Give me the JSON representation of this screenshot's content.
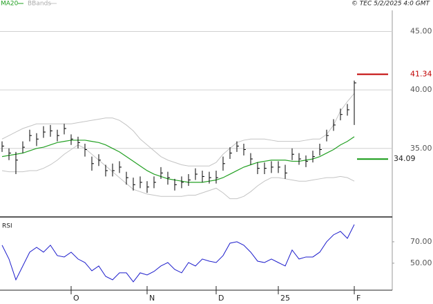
{
  "chart_data": {
    "type": "ohlc",
    "credit": "© TEC 5/2/2025 4:0 GMT",
    "color": "#000000",
    "categories": [
      null,
      null,
      null,
      null,
      null,
      null,
      null,
      null,
      null,
      null,
      "O",
      null,
      null,
      null,
      null,
      null,
      null,
      null,
      null,
      null,
      null,
      "N",
      null,
      null,
      null,
      null,
      null,
      null,
      null,
      null,
      null,
      "D",
      null,
      null,
      null,
      null,
      null,
      null,
      null,
      null,
      "25",
      null,
      null,
      null,
      null,
      null,
      null,
      null,
      null,
      null,
      null,
      "F"
    ],
    "high": [
      35.6,
      35.0,
      34.7,
      35.6,
      36.6,
      36.3,
      36.9,
      37.0,
      36.6,
      37.1,
      36.2,
      36.0,
      35.4,
      34.3,
      34.5,
      33.6,
      33.7,
      33.9,
      33.0,
      32.5,
      32.6,
      32.2,
      32.6,
      33.4,
      33.0,
      32.4,
      32.6,
      32.8,
      33.3,
      33.1,
      33.0,
      33.1,
      34.3,
      35.1,
      35.6,
      35.4,
      34.6,
      33.8,
      33.8,
      33.9,
      33.9,
      33.6,
      35.0,
      34.6,
      34.4,
      34.8,
      35.4,
      36.6,
      37.5,
      38.4,
      38.8,
      40.8
    ],
    "low": [
      34.7,
      34.0,
      32.8,
      34.6,
      35.6,
      35.2,
      35.9,
      36.0,
      35.6,
      36.2,
      35.3,
      35.0,
      34.3,
      33.1,
      33.5,
      32.6,
      32.6,
      32.9,
      31.9,
      31.4,
      31.6,
      31.2,
      31.6,
      32.4,
      31.9,
      31.4,
      31.6,
      31.8,
      32.3,
      32.1,
      32.0,
      32.0,
      33.1,
      34.1,
      34.7,
      34.4,
      33.6,
      32.8,
      32.8,
      32.9,
      32.9,
      32.4,
      34.0,
      33.6,
      33.4,
      33.8,
      34.4,
      35.6,
      36.5,
      37.4,
      37.8,
      37.0
    ],
    "close": [
      35.2,
      34.6,
      34.0,
      35.1,
      36.1,
      35.8,
      36.4,
      36.5,
      36.1,
      36.7,
      35.8,
      35.5,
      34.9,
      33.7,
      34.0,
      33.1,
      33.1,
      33.4,
      32.5,
      31.9,
      32.1,
      31.7,
      32.1,
      32.9,
      32.5,
      31.9,
      32.1,
      32.3,
      32.8,
      32.6,
      32.5,
      32.5,
      33.7,
      34.6,
      35.2,
      34.9,
      34.1,
      33.3,
      33.3,
      33.4,
      33.4,
      32.9,
      34.5,
      34.1,
      33.9,
      34.3,
      34.9,
      36.1,
      37.0,
      37.9,
      38.3,
      40.6
    ],
    "ylim": [
      29.2,
      46.8
    ],
    "yticks": [
      {
        "value": 35,
        "label": "35.00"
      },
      {
        "value": 40,
        "label": "40.00"
      },
      {
        "value": 45,
        "label": "45.00"
      }
    ],
    "grid": true,
    "series": [
      {
        "name": "MA20",
        "color": "#22a022",
        "values": [
          34.3,
          34.4,
          34.5,
          34.6,
          34.8,
          35.0,
          35.1,
          35.3,
          35.5,
          35.6,
          35.7,
          35.7,
          35.7,
          35.6,
          35.5,
          35.3,
          35.0,
          34.7,
          34.3,
          33.9,
          33.5,
          33.1,
          32.8,
          32.6,
          32.4,
          32.3,
          32.2,
          32.1,
          32.1,
          32.1,
          32.2,
          32.3,
          32.5,
          32.8,
          33.1,
          33.4,
          33.6,
          33.8,
          33.9,
          34.0,
          34.0,
          34.0,
          33.9,
          33.9,
          34.0,
          34.1,
          34.3,
          34.6,
          34.9,
          35.3,
          35.6,
          36.0
        ]
      },
      {
        "name": "BBands",
        "color": "#c4c4c4",
        "upper": [
          35.8,
          36.1,
          36.4,
          36.7,
          36.9,
          37.1,
          37.1,
          37.1,
          37.1,
          37.1,
          37.1,
          37.2,
          37.3,
          37.4,
          37.5,
          37.6,
          37.6,
          37.4,
          37.0,
          36.5,
          35.8,
          35.3,
          34.8,
          34.3,
          34.0,
          33.8,
          33.6,
          33.5,
          33.5,
          33.5,
          33.5,
          33.8,
          34.5,
          35.0,
          35.5,
          35.7,
          35.8,
          35.8,
          35.8,
          35.7,
          35.6,
          35.6,
          35.6,
          35.6,
          35.7,
          35.8,
          35.8,
          36.2,
          37.0,
          38.2,
          39.0,
          39.7
        ],
        "lower": [
          33.1,
          33.0,
          33.0,
          33.0,
          33.1,
          33.1,
          33.3,
          33.6,
          34.0,
          34.5,
          34.9,
          35.3,
          35.0,
          34.5,
          34.0,
          33.5,
          33.0,
          32.5,
          32.0,
          31.5,
          31.3,
          31.1,
          31.0,
          30.9,
          30.9,
          30.9,
          30.9,
          31.0,
          31.0,
          31.2,
          31.4,
          31.6,
          31.2,
          30.7,
          30.7,
          30.9,
          31.3,
          31.8,
          32.2,
          32.5,
          32.5,
          32.4,
          32.3,
          32.2,
          32.2,
          32.3,
          32.4,
          32.5,
          32.5,
          32.6,
          32.5,
          32.2
        ]
      }
    ],
    "markers": [
      {
        "value": 41.34,
        "color": "#c00000"
      },
      {
        "value": 34.09,
        "color": "#119911"
      }
    ],
    "rsi": {
      "title": "RSI",
      "color": "#1c1ccc",
      "ylim": [
        24.8,
        90.6
      ],
      "yticks": [
        {
          "value": 50,
          "label": "50.00"
        },
        {
          "value": 70,
          "label": "70.00"
        }
      ],
      "values": [
        66.8,
        53.9,
        34.5,
        47.4,
        60.3,
        64.8,
        60.3,
        66.8,
        57.1,
        55.8,
        60.3,
        53.9,
        50.6,
        42.9,
        47.4,
        37.7,
        34.5,
        41.0,
        41.0,
        32.6,
        41.0,
        39.0,
        42.3,
        47.4,
        50.6,
        44.2,
        41.0,
        50.6,
        47.4,
        53.9,
        51.9,
        50.6,
        57.1,
        68.7,
        70,
        66.8,
        60.3,
        51.9,
        50.6,
        53.9,
        50.6,
        47.4,
        62.3,
        53.9,
        55.8,
        55.8,
        60.3,
        70,
        76.5,
        79.7,
        73.2,
        86.1
      ]
    }
  }
}
